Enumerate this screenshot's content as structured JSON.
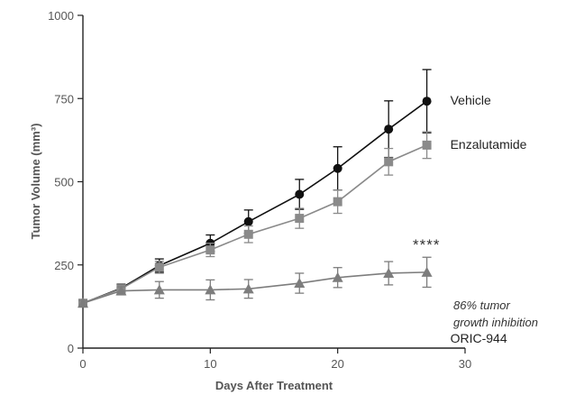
{
  "chart_data": {
    "type": "line",
    "title": "",
    "xlabel": "Days After Treatment",
    "ylabel": "Tumor Volume (mm³)",
    "xlim": [
      0,
      30
    ],
    "ylim": [
      0,
      1000
    ],
    "x_ticks": [
      "0",
      "10",
      "20",
      "30"
    ],
    "y_ticks": [
      "0",
      "250",
      "500",
      "750",
      "1000"
    ],
    "grid": false,
    "legend": "inline labels at right end of lines",
    "series": [
      {
        "name": "Vehicle",
        "marker": "circle",
        "color": "#111111",
        "x": [
          0,
          3,
          6,
          10,
          13,
          17,
          20,
          24,
          27
        ],
        "y": [
          135,
          180,
          248,
          315,
          380,
          462,
          540,
          658,
          742
        ],
        "err": [
          8,
          12,
          20,
          25,
          35,
          45,
          65,
          85,
          95
        ]
      },
      {
        "name": "Enzalutamide",
        "marker": "square",
        "color": "#8a8a8a",
        "x": [
          0,
          3,
          6,
          10,
          13,
          17,
          20,
          24,
          27
        ],
        "y": [
          135,
          178,
          243,
          295,
          342,
          390,
          440,
          560,
          610
        ],
        "err": [
          8,
          12,
          18,
          20,
          25,
          30,
          35,
          40,
          40
        ]
      },
      {
        "name": "ORIC-944",
        "marker": "triangle",
        "color": "#7d7d7d",
        "x": [
          0,
          3,
          6,
          10,
          13,
          17,
          20,
          24,
          27
        ],
        "y": [
          135,
          172,
          175,
          175,
          178,
          195,
          212,
          225,
          228
        ],
        "err": [
          8,
          12,
          25,
          30,
          28,
          30,
          30,
          35,
          45
        ]
      }
    ],
    "annotations": {
      "significance": "****",
      "inhibition_line1": "86% tumor",
      "inhibition_line2": "growth inhibition"
    }
  }
}
